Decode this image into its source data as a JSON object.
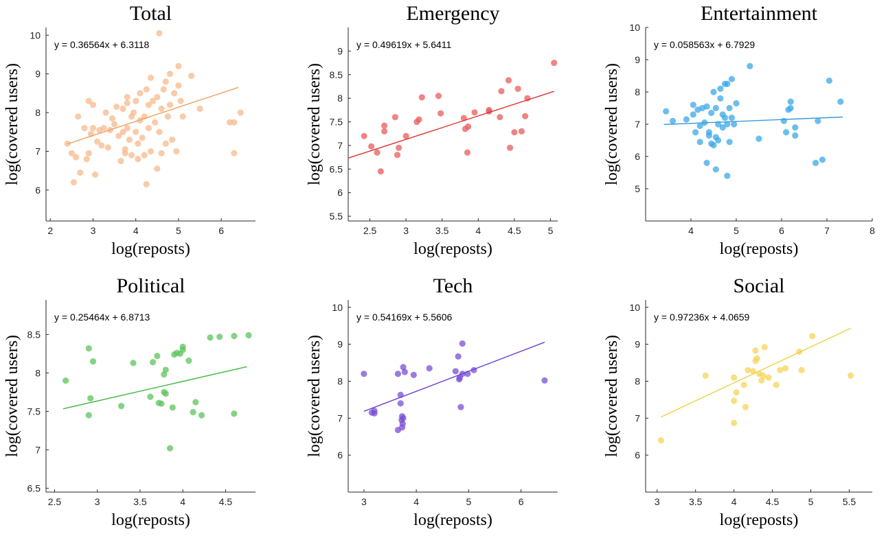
{
  "chart_data": [
    {
      "type": "scatter",
      "title": "Total",
      "xlabel": "log(reposts)",
      "ylabel": "log(covered users)",
      "xlim": [
        1.9,
        6.8
      ],
      "ylim": [
        5.2,
        10.2
      ],
      "xticks": [
        2,
        3,
        4,
        5,
        6
      ],
      "yticks": [
        6,
        7,
        8,
        9,
        10
      ],
      "color": "#f7b98c",
      "line_color": "#f0a060",
      "fit": {
        "slope": 0.36564,
        "intercept": 6.3118,
        "x_range": [
          2.4,
          6.4
        ]
      },
      "equation": "y = 0.36564x + 6.3118",
      "points": [
        [
          2.4,
          7.2
        ],
        [
          2.5,
          6.95
        ],
        [
          2.55,
          6.2
        ],
        [
          2.6,
          6.85
        ],
        [
          2.65,
          7.9
        ],
        [
          2.7,
          6.45
        ],
        [
          2.8,
          7.6
        ],
        [
          2.85,
          6.8
        ],
        [
          2.9,
          6.95
        ],
        [
          2.9,
          8.3
        ],
        [
          2.95,
          7.45
        ],
        [
          3.0,
          7.6
        ],
        [
          3.0,
          8.2
        ],
        [
          3.05,
          6.4
        ],
        [
          3.1,
          7.25
        ],
        [
          3.15,
          7.55
        ],
        [
          3.2,
          7.15
        ],
        [
          3.25,
          7.6
        ],
        [
          3.3,
          8.0
        ],
        [
          3.35,
          7.1
        ],
        [
          3.4,
          7.55
        ],
        [
          3.45,
          7.85
        ],
        [
          3.5,
          7.7
        ],
        [
          3.55,
          8.15
        ],
        [
          3.6,
          7.4
        ],
        [
          3.65,
          6.75
        ],
        [
          3.7,
          8.1
        ],
        [
          3.7,
          7.5
        ],
        [
          3.75,
          7.05
        ],
        [
          3.75,
          6.95
        ],
        [
          3.8,
          8.25
        ],
        [
          3.8,
          7.6
        ],
        [
          3.8,
          8.4
        ],
        [
          3.85,
          7.3
        ],
        [
          3.9,
          7.9
        ],
        [
          3.9,
          6.9
        ],
        [
          3.95,
          8.0
        ],
        [
          4.0,
          7.5
        ],
        [
          4.0,
          8.3
        ],
        [
          4.05,
          7.2
        ],
        [
          4.05,
          6.8
        ],
        [
          4.1,
          7.8
        ],
        [
          4.1,
          8.5
        ],
        [
          4.15,
          7.35
        ],
        [
          4.2,
          7.9
        ],
        [
          4.2,
          6.9
        ],
        [
          4.25,
          8.6
        ],
        [
          4.25,
          6.15
        ],
        [
          4.3,
          8.2
        ],
        [
          4.3,
          7.6
        ],
        [
          4.35,
          8.9
        ],
        [
          4.35,
          7.0
        ],
        [
          4.4,
          8.3
        ],
        [
          4.45,
          7.75
        ],
        [
          4.5,
          6.55
        ],
        [
          4.5,
          8.4
        ],
        [
          4.55,
          10.05
        ],
        [
          4.55,
          7.5
        ],
        [
          4.6,
          8.1
        ],
        [
          4.6,
          6.95
        ],
        [
          4.65,
          8.6
        ],
        [
          4.7,
          7.2
        ],
        [
          4.7,
          8.8
        ],
        [
          4.75,
          7.9
        ],
        [
          4.8,
          8.2
        ],
        [
          4.8,
          9.0
        ],
        [
          4.85,
          7.3
        ],
        [
          4.9,
          8.5
        ],
        [
          4.95,
          7.0
        ],
        [
          5.0,
          8.7
        ],
        [
          5.0,
          9.2
        ],
        [
          5.05,
          8.3
        ],
        [
          5.1,
          7.9
        ],
        [
          5.3,
          8.95
        ],
        [
          5.5,
          8.1
        ],
        [
          6.2,
          7.75
        ],
        [
          6.3,
          7.75
        ],
        [
          6.3,
          6.95
        ],
        [
          6.45,
          8.0
        ]
      ]
    },
    {
      "type": "scatter",
      "title": "Emergency",
      "xlabel": "log(reposts)",
      "ylabel": "log(covered users)",
      "xlim": [
        2.2,
        5.1
      ],
      "ylim": [
        5.4,
        9.5
      ],
      "xticks": [
        2.5,
        3,
        3.5,
        4,
        4.5,
        5
      ],
      "yticks": [
        5.5,
        6,
        6.5,
        7,
        7.5,
        8,
        8.5,
        9
      ],
      "color": "#e85c5c",
      "line_color": "#e03030",
      "fit": {
        "slope": 0.49619,
        "intercept": 5.6411,
        "x_range": [
          2.2,
          5.05
        ]
      },
      "equation": "y = 0.49619x + 5.6411",
      "points": [
        [
          2.42,
          7.2
        ],
        [
          2.52,
          6.98
        ],
        [
          2.6,
          6.85
        ],
        [
          2.65,
          6.45
        ],
        [
          2.7,
          7.3
        ],
        [
          2.7,
          7.42
        ],
        [
          2.85,
          7.6
        ],
        [
          2.88,
          6.8
        ],
        [
          2.9,
          6.95
        ],
        [
          3.0,
          7.2
        ],
        [
          3.15,
          7.5
        ],
        [
          3.18,
          7.55
        ],
        [
          3.22,
          8.02
        ],
        [
          3.45,
          8.05
        ],
        [
          3.48,
          7.68
        ],
        [
          3.8,
          7.58
        ],
        [
          3.82,
          7.35
        ],
        [
          3.85,
          6.85
        ],
        [
          3.86,
          7.4
        ],
        [
          3.95,
          7.7
        ],
        [
          4.15,
          7.75
        ],
        [
          4.15,
          7.72
        ],
        [
          4.3,
          7.6
        ],
        [
          4.32,
          8.15
        ],
        [
          4.42,
          8.38
        ],
        [
          4.44,
          6.95
        ],
        [
          4.5,
          7.28
        ],
        [
          4.55,
          8.2
        ],
        [
          4.6,
          7.3
        ],
        [
          4.65,
          7.62
        ],
        [
          4.68,
          8.0
        ],
        [
          5.05,
          8.75
        ]
      ]
    },
    {
      "type": "scatter",
      "title": "Entertainment",
      "xlabel": "log(reposts)",
      "ylabel": "log(covered users)",
      "xlim": [
        3.0,
        8.0
      ],
      "ylim": [
        4.0,
        10.0
      ],
      "xticks": [
        4,
        5,
        6,
        7,
        8
      ],
      "yticks": [
        5,
        6,
        7,
        8,
        9,
        10
      ],
      "color": "#3ba8e6",
      "line_color": "#3a9ad9",
      "fit": {
        "slope": 0.058563,
        "intercept": 6.7929,
        "x_range": [
          3.4,
          7.35
        ]
      },
      "equation": "y = 0.058563x + 6.7929",
      "points": [
        [
          3.45,
          7.4
        ],
        [
          3.6,
          7.1
        ],
        [
          3.9,
          7.15
        ],
        [
          4.05,
          7.6
        ],
        [
          4.05,
          7.3
        ],
        [
          4.1,
          6.75
        ],
        [
          4.15,
          7.45
        ],
        [
          4.2,
          6.45
        ],
        [
          4.2,
          6.95
        ],
        [
          4.25,
          7.5
        ],
        [
          4.3,
          7.05
        ],
        [
          4.35,
          7.55
        ],
        [
          4.35,
          5.8
        ],
        [
          4.4,
          6.75
        ],
        [
          4.4,
          6.65
        ],
        [
          4.45,
          7.35
        ],
        [
          4.45,
          6.4
        ],
        [
          4.5,
          8.0
        ],
        [
          4.5,
          6.35
        ],
        [
          4.55,
          7.5
        ],
        [
          4.55,
          6.6
        ],
        [
          4.55,
          5.6
        ],
        [
          4.6,
          7.0
        ],
        [
          4.6,
          6.5
        ],
        [
          4.65,
          8.1
        ],
        [
          4.65,
          7.8
        ],
        [
          4.7,
          7.3
        ],
        [
          4.7,
          6.9
        ],
        [
          4.75,
          8.25
        ],
        [
          4.75,
          7.2
        ],
        [
          4.8,
          8.25
        ],
        [
          4.8,
          5.4
        ],
        [
          4.8,
          7.0
        ],
        [
          4.85,
          6.45
        ],
        [
          4.85,
          7.5
        ],
        [
          4.9,
          7.2
        ],
        [
          4.9,
          8.4
        ],
        [
          4.95,
          7.0
        ],
        [
          5.0,
          7.65
        ],
        [
          5.3,
          8.8
        ],
        [
          5.5,
          6.55
        ],
        [
          6.05,
          7.1
        ],
        [
          6.1,
          6.75
        ],
        [
          6.15,
          7.45
        ],
        [
          6.2,
          7.5
        ],
        [
          6.2,
          7.7
        ],
        [
          6.3,
          6.9
        ],
        [
          6.3,
          6.65
        ],
        [
          6.75,
          5.8
        ],
        [
          6.8,
          7.1
        ],
        [
          6.9,
          5.9
        ],
        [
          7.05,
          8.35
        ],
        [
          7.3,
          7.7
        ]
      ]
    },
    {
      "type": "scatter",
      "title": "Political",
      "xlabel": "log(reposts)",
      "ylabel": "log(covered users)",
      "xlim": [
        2.4,
        4.85
      ],
      "ylim": [
        6.45,
        8.95
      ],
      "xticks": [
        2.5,
        3,
        3.5,
        4,
        4.5
      ],
      "yticks": [
        6.5,
        7,
        7.5,
        8,
        8.5
      ],
      "color": "#5cc45c",
      "line_color": "#3cb83c",
      "fit": {
        "slope": 0.25464,
        "intercept": 6.8713,
        "x_range": [
          2.6,
          4.75
        ]
      },
      "equation": "y = 0.25464x + 6.8713",
      "points": [
        [
          2.63,
          7.9
        ],
        [
          2.9,
          7.45
        ],
        [
          2.9,
          8.32
        ],
        [
          2.92,
          7.67
        ],
        [
          2.95,
          8.15
        ],
        [
          3.28,
          7.57
        ],
        [
          3.42,
          8.13
        ],
        [
          3.62,
          7.69
        ],
        [
          3.65,
          8.14
        ],
        [
          3.7,
          8.22
        ],
        [
          3.72,
          7.61
        ],
        [
          3.75,
          7.6
        ],
        [
          3.78,
          7.75
        ],
        [
          3.78,
          7.98
        ],
        [
          3.8,
          8.04
        ],
        [
          3.8,
          7.73
        ],
        [
          3.85,
          7.02
        ],
        [
          3.88,
          7.55
        ],
        [
          3.9,
          8.24
        ],
        [
          3.93,
          8.26
        ],
        [
          3.97,
          8.25
        ],
        [
          4.0,
          8.3
        ],
        [
          4.0,
          8.34
        ],
        [
          4.07,
          8.16
        ],
        [
          4.12,
          7.49
        ],
        [
          4.15,
          7.62
        ],
        [
          4.22,
          7.45
        ],
        [
          4.32,
          8.46
        ],
        [
          4.43,
          8.47
        ],
        [
          4.6,
          8.48
        ],
        [
          4.6,
          7.47
        ],
        [
          4.77,
          8.49
        ]
      ]
    },
    {
      "type": "scatter",
      "title": "Tech",
      "xlabel": "log(reposts)",
      "ylabel": "log(covered users)",
      "xlim": [
        2.7,
        6.7
      ],
      "ylim": [
        5.0,
        10.2
      ],
      "xticks": [
        3,
        4,
        5,
        6
      ],
      "yticks": [
        6,
        7,
        8,
        9,
        10
      ],
      "color": "#7a4fd6",
      "line_color": "#6a3fd0",
      "fit": {
        "slope": 0.54169,
        "intercept": 5.5606,
        "x_range": [
          3.0,
          6.45
        ]
      },
      "equation": "y = 0.54169x + 5.5606",
      "points": [
        [
          3.0,
          8.2
        ],
        [
          3.15,
          7.15
        ],
        [
          3.2,
          7.13
        ],
        [
          3.2,
          7.2
        ],
        [
          3.65,
          6.68
        ],
        [
          3.65,
          8.2
        ],
        [
          3.7,
          7.4
        ],
        [
          3.7,
          7.63
        ],
        [
          3.72,
          6.95
        ],
        [
          3.73,
          7.05
        ],
        [
          3.73,
          6.75
        ],
        [
          3.74,
          6.85
        ],
        [
          3.75,
          8.38
        ],
        [
          3.75,
          7.0
        ],
        [
          3.78,
          8.25
        ],
        [
          3.95,
          8.17
        ],
        [
          4.25,
          8.35
        ],
        [
          4.75,
          8.27
        ],
        [
          4.8,
          8.67
        ],
        [
          4.82,
          8.05
        ],
        [
          4.83,
          8.1
        ],
        [
          4.85,
          7.3
        ],
        [
          4.88,
          8.2
        ],
        [
          4.88,
          9.02
        ],
        [
          4.98,
          8.2
        ],
        [
          5.1,
          8.3
        ],
        [
          6.45,
          8.02
        ]
      ]
    },
    {
      "type": "scatter",
      "title": "Social",
      "xlabel": "log(reposts)",
      "ylabel": "log(covered users)",
      "xlim": [
        2.85,
        5.8
      ],
      "ylim": [
        5.0,
        10.2
      ],
      "xticks": [
        3,
        3.5,
        4,
        4.5,
        5,
        5.5
      ],
      "yticks": [
        6,
        7,
        8,
        9,
        10
      ],
      "color": "#f5d45a",
      "line_color": "#ecd040",
      "fit": {
        "slope": 0.97236,
        "intercept": 4.0659,
        "x_range": [
          3.05,
          5.52
        ]
      },
      "equation": "y = 0.97236x + 4.0659",
      "points": [
        [
          3.05,
          6.4
        ],
        [
          3.63,
          8.15
        ],
        [
          4.0,
          8.1
        ],
        [
          4.0,
          7.47
        ],
        [
          4.0,
          6.87
        ],
        [
          4.03,
          7.7
        ],
        [
          4.13,
          7.9
        ],
        [
          4.15,
          7.3
        ],
        [
          4.18,
          8.3
        ],
        [
          4.25,
          8.27
        ],
        [
          4.28,
          8.55
        ],
        [
          4.28,
          8.83
        ],
        [
          4.3,
          8.62
        ],
        [
          4.33,
          8.2
        ],
        [
          4.36,
          8.02
        ],
        [
          4.38,
          8.15
        ],
        [
          4.4,
          8.92
        ],
        [
          4.45,
          8.1
        ],
        [
          4.55,
          7.9
        ],
        [
          4.6,
          8.3
        ],
        [
          4.67,
          8.35
        ],
        [
          4.85,
          8.8
        ],
        [
          4.88,
          8.3
        ],
        [
          5.02,
          9.22
        ],
        [
          5.52,
          8.15
        ]
      ]
    }
  ]
}
